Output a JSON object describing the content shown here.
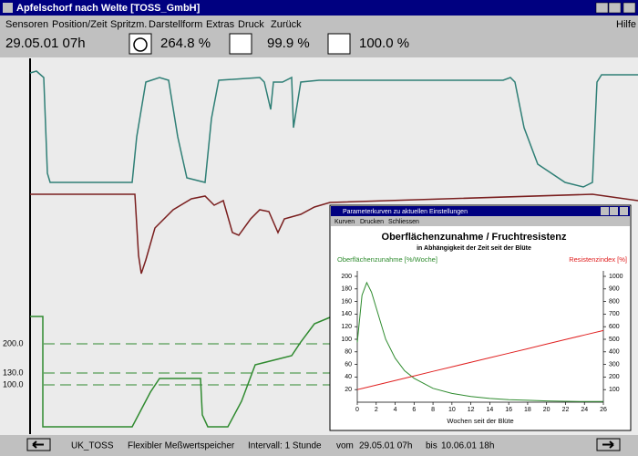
{
  "window": {
    "title": "Apfelschorf nach Welte [TOSS_GmbH]",
    "menu": [
      "Sensoren",
      "Position/Zeit",
      "Spritzm.",
      "Darstellform",
      "Extras",
      "Druck",
      "Zurück"
    ],
    "help": "Hilfe"
  },
  "toolbar": {
    "datetime": "29.05.01 07h",
    "readings": [
      "264.8 %",
      "99.9 %",
      "100.0 %"
    ]
  },
  "main_plot": {
    "levels": [
      "200.0",
      "130.0",
      "100.0"
    ]
  },
  "status": {
    "station": "UK_TOSS",
    "storage": "Flexibler Meßwertspeicher",
    "interval": "Intervall: 1 Stunde",
    "from_label": "vom",
    "from": "29.05.01 07h",
    "to_label": "bis",
    "to": "10.06.01 18h"
  },
  "popup": {
    "title": "Parameterkurven zu aktuellen Einstellungen",
    "menu": [
      "Kurven",
      "Drucken",
      "Schliessen"
    ],
    "chart_data": {
      "type": "line",
      "title": "Oberflächenzunahme / Fruchtresistenz",
      "subtitle": "in Abhängigkeit der Zeit seit der Blüte",
      "xlabel": "Wochen seit der Blüte",
      "ylabel": "Oberflächenzunahme [%/Woche]",
      "y2label": "Resistenzindex [%]",
      "x": [
        0,
        0.5,
        1,
        1.5,
        2,
        3,
        4,
        5,
        6,
        8,
        10,
        12,
        14,
        16,
        18,
        20,
        22,
        24,
        26
      ],
      "xlim": [
        0,
        26
      ],
      "xticks": [
        0,
        2,
        4,
        6,
        8,
        10,
        12,
        14,
        16,
        18,
        20,
        22,
        24,
        26
      ],
      "ylim": [
        0,
        200
      ],
      "yticks": [
        20,
        40,
        60,
        80,
        100,
        120,
        140,
        160,
        180,
        200
      ],
      "y2lim": [
        0,
        1000
      ],
      "y2ticks": [
        100,
        200,
        300,
        400,
        500,
        600,
        700,
        800,
        900,
        1000
      ],
      "series": [
        {
          "name": "Oberflächenzunahme",
          "color": "#2e8b2e",
          "values": [
            95,
            170,
            190,
            175,
            150,
            100,
            70,
            50,
            38,
            22,
            14,
            9,
            6,
            4,
            3,
            2,
            1.5,
            1,
            1
          ]
        },
        {
          "name": "Resistenzindex",
          "color": "#e02020",
          "axis": "y2",
          "values": [
            100,
            109,
            118,
            127,
            136,
            154,
            172,
            190,
            208,
            245,
            281,
            317,
            353,
            389,
            425,
            462,
            498,
            534,
            570
          ]
        }
      ]
    }
  }
}
